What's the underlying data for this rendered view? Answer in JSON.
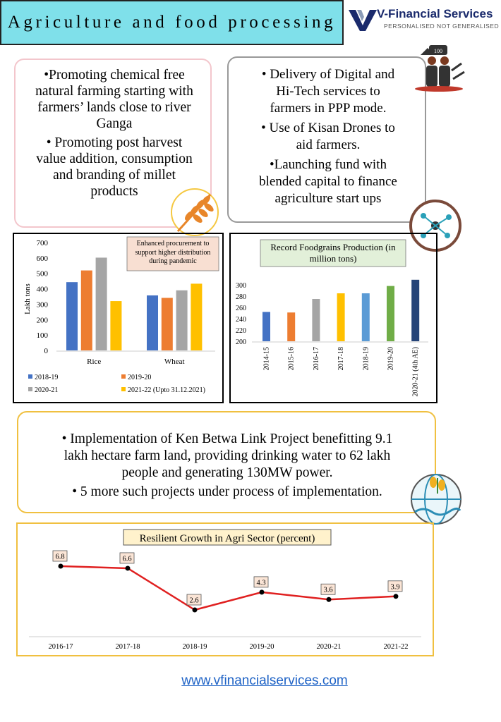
{
  "title": "Agriculture and food processing",
  "brand": {
    "name": "V-Financial Services",
    "tagline": "PERSONALISED NOT GENERALISED"
  },
  "left_box": {
    "line1": "•Promoting chemical free",
    "line2": "natural farming starting with",
    "line3": "farmers’ lands close to river",
    "line4": "Ganga",
    "line5": "• Promoting post harvest",
    "line6": "value addition, consumption",
    "line7": "and branding of millet",
    "line8": "products"
  },
  "right_box": {
    "line1": "•   Delivery of Digital and",
    "line2": "Hi-Tech services to",
    "line3": "farmers in PPP mode.",
    "line4": "•   Use of Kisan Drones to",
    "line5": "aid farmers.",
    "line6": "•Launching fund with",
    "line7": "blended capital to finance",
    "line8": "agriculture start ups"
  },
  "project_box": {
    "line1": "•   Implementation of Ken Betwa Link Project benefitting 9.1",
    "line2": "lakh hectare farm land, providing drinking water to 62 lakh",
    "line3": "people and generating 130MW power.",
    "line4": "•   5 more such projects under process of implementation."
  },
  "footer": {
    "link": "www.vfinancialservices.com"
  },
  "icon_badge_text": "100",
  "colors": {
    "blue": "#4472c4",
    "orange": "#ed7d31",
    "gray": "#a5a5a5",
    "yellow": "#ffc000",
    "lightblue": "#5b9bd5",
    "green": "#70ad47",
    "navy": "#264478",
    "red": "#e02020"
  },
  "chart_data": [
    {
      "type": "bar",
      "ylabel": "Lakh tons",
      "annotation": "Enhanced procurement to support higher distribution during pandemic",
      "categories": [
        "Rice",
        "Wheat"
      ],
      "ylim": [
        0,
        700
      ],
      "yticks": [
        0,
        100,
        200,
        300,
        400,
        500,
        600,
        700
      ],
      "series": [
        {
          "name": "2018-19",
          "values": [
            443,
            357
          ]
        },
        {
          "name": "2019-20",
          "values": [
            519,
            341
          ]
        },
        {
          "name": "2020-21",
          "values": [
            602,
            390
          ]
        },
        {
          "name": "2021-22 (Upto 31.12.2021)",
          "values": [
            320,
            433
          ]
        }
      ],
      "grid": false,
      "legend": "bottom"
    },
    {
      "type": "bar",
      "title": "Record Foodgrains Production (in million tons)",
      "categories": [
        "2014-15",
        "2015-16",
        "2016-17",
        "2017-18",
        "2018-19",
        "2019-20",
        "2020-21 (4th AE)"
      ],
      "values": [
        252,
        251,
        275,
        285,
        285,
        298,
        309
      ],
      "ylim": [
        200,
        300
      ],
      "yticks": [
        200,
        220,
        240,
        260,
        280,
        300
      ],
      "grid": false
    },
    {
      "type": "line",
      "title": "Resilient Growth in Agri Sector (percent)",
      "categories": [
        "2016-17",
        "2017-18",
        "2018-19",
        "2019-20",
        "2020-21",
        "2021-22"
      ],
      "values": [
        6.8,
        6.6,
        2.6,
        4.3,
        3.6,
        3.9
      ],
      "grid": false
    }
  ]
}
